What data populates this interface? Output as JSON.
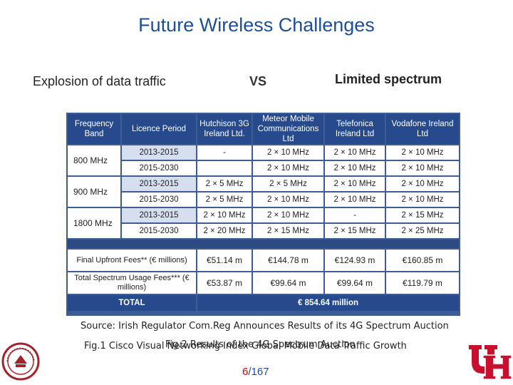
{
  "title": "Future Wireless Challenges",
  "left_subtitle": "Explosion of data traffic",
  "vs": "VS",
  "right_subtitle": "Limited spectrum",
  "table": {
    "headers": [
      "Frequency Band",
      "Licence Period",
      "Hutchison 3G Ireland Ltd.",
      "Meteor Mobile Communications Ltd",
      "Telefonica Ireland Ltd",
      "Vodafone Ireland Ltd"
    ],
    "bands": [
      {
        "band": "800 MHz",
        "rows": [
          [
            "2013-2015",
            "-",
            "2 × 10 MHz",
            "2 × 10 MHz",
            "2 × 10 MHz"
          ],
          [
            "2015-2030",
            "",
            "2 × 10 MHz",
            "2 × 10 MHz",
            "2 × 10 MHz"
          ]
        ]
      },
      {
        "band": "900 MHz",
        "rows": [
          [
            "2013-2015",
            "2 × 5 MHz",
            "2 × 5 MHz",
            "2 × 10 MHz",
            "2 × 10 MHz"
          ],
          [
            "2015-2030",
            "2 × 5 MHz",
            "2 × 10 MHz",
            "2 × 10 MHz",
            "2 × 10 MHz"
          ]
        ]
      },
      {
        "band": "1800 MHz",
        "rows": [
          [
            "2013-2015",
            "2 × 10 MHz",
            "2 × 10 MHz",
            "-",
            "2 × 15 MHz"
          ],
          [
            "2015-2030",
            "2 × 20 MHz",
            "2 × 15 MHz",
            "2 × 15 MHz",
            "2 × 25 MHz"
          ]
        ]
      }
    ],
    "final_fees_label": "Final Upfront Fees** (€ millions)",
    "final_fees": [
      "€51.14 m",
      "€144.78 m",
      "€124.93 m",
      "€160.85 m"
    ],
    "usage_fees_label": "Total Spectrum Usage Fees*** (€ millions)",
    "usage_fees": [
      "€53.87 m",
      "€99.64 m",
      "€99.64 m",
      "€119.79 m"
    ],
    "total_label": "TOTAL",
    "total_value": "€ 854.64 million"
  },
  "source": "Source: Irish Regulator Com.Reg Announces Results of its 4G Spectrum Auction",
  "fig1": "Fig.1 Cisco Visual Networking Index Global Mobile Data Traffic Growth",
  "fig2": "Fig.2 Results of the 4G Spectrum Auction",
  "page_current": "6",
  "page_total": "/167"
}
